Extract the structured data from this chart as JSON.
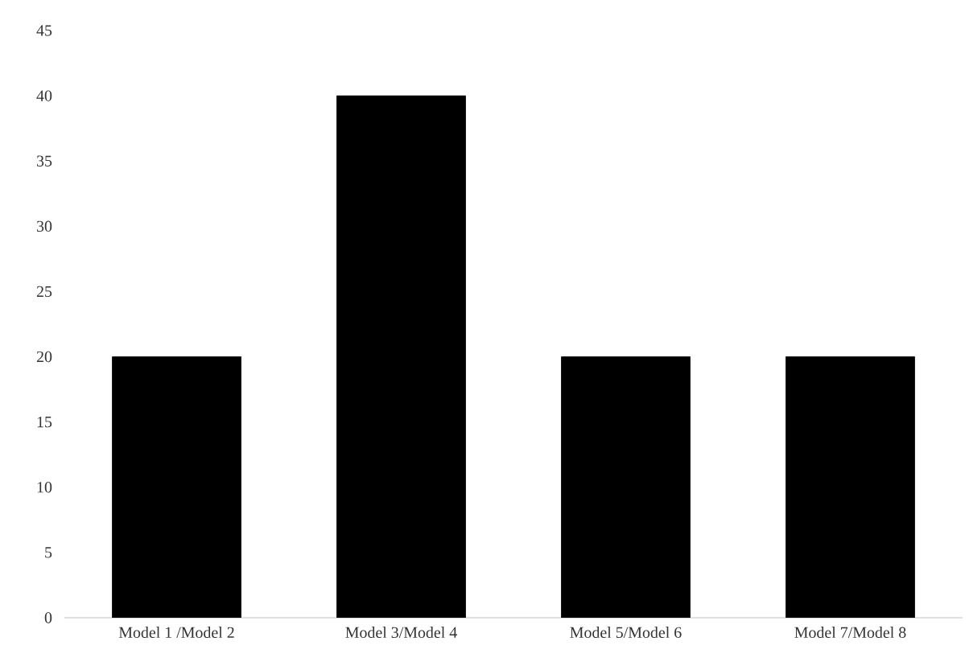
{
  "chart_data": {
    "type": "bar",
    "categories": [
      "Model 1 /Model 2",
      "Model 3/Model 4",
      "Model 5/Model 6",
      "Model 7/Model 8"
    ],
    "values": [
      20,
      40,
      20,
      20
    ],
    "color": "#000000",
    "ylim": [
      0,
      45
    ],
    "yticks": [
      0,
      5,
      10,
      15,
      20,
      25,
      30,
      35,
      40,
      45
    ]
  }
}
